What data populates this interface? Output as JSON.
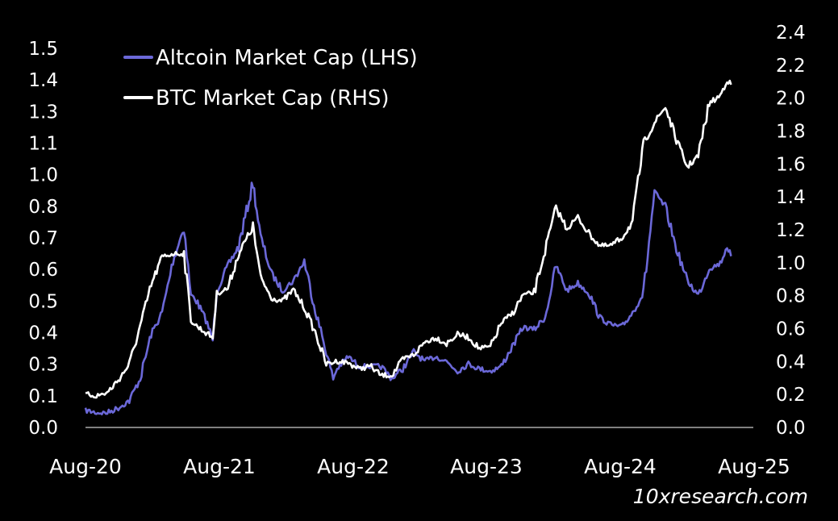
{
  "chart_data": {
    "type": "line",
    "title": "",
    "colors": {
      "background": "#000000",
      "altcoin": "#6b68d8",
      "btc": "#ffffff",
      "axis": "#ffffff",
      "text": "#ffffff"
    },
    "grid": false,
    "legend_position": "top-left",
    "x_ticks": [
      "Aug-20",
      "Aug-21",
      "Aug-22",
      "Aug-23",
      "Aug-24",
      "Aug-25"
    ],
    "x_range": [
      "2020-08",
      "2025-08"
    ],
    "y_left": {
      "ticks": [
        "0.0",
        "0.1",
        "0.3",
        "0.4",
        "0.5",
        "0.6",
        "0.7",
        "0.8",
        "1.0",
        "1.1",
        "1.3",
        "1.4",
        "1.5"
      ],
      "range": [
        0,
        1.55
      ]
    },
    "y_right": {
      "ticks": [
        "0.0",
        "0.2",
        "0.4",
        "0.6",
        "0.8",
        "1.0",
        "1.2",
        "1.4",
        "1.6",
        "1.8",
        "2.0",
        "2.2",
        "2.4"
      ],
      "range": [
        0,
        2.4
      ]
    },
    "series": [
      {
        "name": "Altcoin Market Cap (LHS)",
        "axis": "left",
        "points": [
          [
            "2020-08-01",
            0.07
          ],
          [
            "2020-09-01",
            0.06
          ],
          [
            "2020-10-01",
            0.06
          ],
          [
            "2020-11-01",
            0.08
          ],
          [
            "2020-12-01",
            0.11
          ],
          [
            "2021-01-01",
            0.2
          ],
          [
            "2021-02-01",
            0.38
          ],
          [
            "2021-03-01",
            0.47
          ],
          [
            "2021-04-01",
            0.68
          ],
          [
            "2021-05-01",
            0.82
          ],
          [
            "2021-05-20",
            0.54
          ],
          [
            "2021-06-01",
            0.53
          ],
          [
            "2021-07-01",
            0.44
          ],
          [
            "2021-07-20",
            0.36
          ],
          [
            "2021-08-01",
            0.56
          ],
          [
            "2021-09-01",
            0.66
          ],
          [
            "2021-10-01",
            0.74
          ],
          [
            "2021-11-10",
            1.0
          ],
          [
            "2021-12-01",
            0.78
          ],
          [
            "2022-01-01",
            0.63
          ],
          [
            "2022-02-01",
            0.56
          ],
          [
            "2022-03-01",
            0.6
          ],
          [
            "2022-04-01",
            0.68
          ],
          [
            "2022-05-01",
            0.48
          ],
          [
            "2022-06-01",
            0.31
          ],
          [
            "2022-06-20",
            0.2
          ],
          [
            "2022-07-01",
            0.24
          ],
          [
            "2022-08-01",
            0.29
          ],
          [
            "2022-09-01",
            0.25
          ],
          [
            "2022-10-01",
            0.25
          ],
          [
            "2022-11-01",
            0.25
          ],
          [
            "2022-12-01",
            0.2
          ],
          [
            "2023-01-01",
            0.24
          ],
          [
            "2023-02-01",
            0.31
          ],
          [
            "2023-03-01",
            0.27
          ],
          [
            "2023-04-01",
            0.29
          ],
          [
            "2023-05-01",
            0.27
          ],
          [
            "2023-06-01",
            0.23
          ],
          [
            "2023-07-01",
            0.26
          ],
          [
            "2023-08-01",
            0.24
          ],
          [
            "2023-09-01",
            0.23
          ],
          [
            "2023-10-01",
            0.25
          ],
          [
            "2023-11-01",
            0.33
          ],
          [
            "2023-12-01",
            0.41
          ],
          [
            "2024-01-01",
            0.4
          ],
          [
            "2024-02-01",
            0.45
          ],
          [
            "2024-03-01",
            0.66
          ],
          [
            "2024-04-01",
            0.56
          ],
          [
            "2024-05-01",
            0.59
          ],
          [
            "2024-06-01",
            0.55
          ],
          [
            "2024-07-01",
            0.45
          ],
          [
            "2024-08-01",
            0.42
          ],
          [
            "2024-09-01",
            0.41
          ],
          [
            "2024-10-01",
            0.47
          ],
          [
            "2024-11-01",
            0.55
          ],
          [
            "2024-12-01",
            0.96
          ],
          [
            "2025-01-01",
            0.9
          ],
          [
            "2025-02-01",
            0.73
          ],
          [
            "2025-03-01",
            0.6
          ],
          [
            "2025-04-01",
            0.54
          ],
          [
            "2025-05-01",
            0.65
          ],
          [
            "2025-06-01",
            0.67
          ],
          [
            "2025-06-20",
            0.74
          ],
          [
            "2025-07-01",
            0.7
          ]
        ]
      },
      {
        "name": "BTC Market Cap (RHS)",
        "axis": "right",
        "points": [
          [
            "2020-08-01",
            0.21
          ],
          [
            "2020-09-01",
            0.2
          ],
          [
            "2020-10-01",
            0.22
          ],
          [
            "2020-11-01",
            0.3
          ],
          [
            "2020-12-01",
            0.4
          ],
          [
            "2021-01-01",
            0.64
          ],
          [
            "2021-02-01",
            0.9
          ],
          [
            "2021-03-01",
            1.08
          ],
          [
            "2021-04-01",
            1.1
          ],
          [
            "2021-05-01",
            1.1
          ],
          [
            "2021-05-20",
            0.68
          ],
          [
            "2021-06-01",
            0.65
          ],
          [
            "2021-07-01",
            0.6
          ],
          [
            "2021-07-20",
            0.57
          ],
          [
            "2021-08-01",
            0.85
          ],
          [
            "2021-09-01",
            0.88
          ],
          [
            "2021-10-01",
            1.1
          ],
          [
            "2021-11-10",
            1.27
          ],
          [
            "2021-12-01",
            0.95
          ],
          [
            "2022-01-01",
            0.82
          ],
          [
            "2022-02-01",
            0.8
          ],
          [
            "2022-03-01",
            0.87
          ],
          [
            "2022-04-01",
            0.76
          ],
          [
            "2022-05-01",
            0.6
          ],
          [
            "2022-06-01",
            0.4
          ],
          [
            "2022-07-01",
            0.42
          ],
          [
            "2022-08-01",
            0.41
          ],
          [
            "2022-09-01",
            0.37
          ],
          [
            "2022-10-01",
            0.39
          ],
          [
            "2022-11-01",
            0.33
          ],
          [
            "2022-12-01",
            0.33
          ],
          [
            "2023-01-01",
            0.43
          ],
          [
            "2023-02-01",
            0.46
          ],
          [
            "2023-03-01",
            0.54
          ],
          [
            "2023-04-01",
            0.57
          ],
          [
            "2023-05-01",
            0.53
          ],
          [
            "2023-06-01",
            0.59
          ],
          [
            "2023-07-01",
            0.57
          ],
          [
            "2023-08-01",
            0.5
          ],
          [
            "2023-09-01",
            0.51
          ],
          [
            "2023-10-01",
            0.66
          ],
          [
            "2023-11-01",
            0.72
          ],
          [
            "2023-12-01",
            0.84
          ],
          [
            "2024-01-01",
            0.85
          ],
          [
            "2024-02-01",
            1.12
          ],
          [
            "2024-03-01",
            1.39
          ],
          [
            "2024-04-01",
            1.26
          ],
          [
            "2024-05-01",
            1.33
          ],
          [
            "2024-06-01",
            1.23
          ],
          [
            "2024-07-01",
            1.15
          ],
          [
            "2024-08-01",
            1.15
          ],
          [
            "2024-09-01",
            1.2
          ],
          [
            "2024-10-01",
            1.3
          ],
          [
            "2024-11-01",
            1.8
          ],
          [
            "2024-12-01",
            1.93
          ],
          [
            "2025-01-01",
            2.03
          ],
          [
            "2025-02-01",
            1.82
          ],
          [
            "2025-03-01",
            1.65
          ],
          [
            "2025-04-01",
            1.72
          ],
          [
            "2025-05-01",
            2.05
          ],
          [
            "2025-06-01",
            2.1
          ],
          [
            "2025-06-20",
            2.2
          ],
          [
            "2025-07-01",
            2.17
          ]
        ]
      }
    ]
  },
  "watermark": "10xresearch.com"
}
